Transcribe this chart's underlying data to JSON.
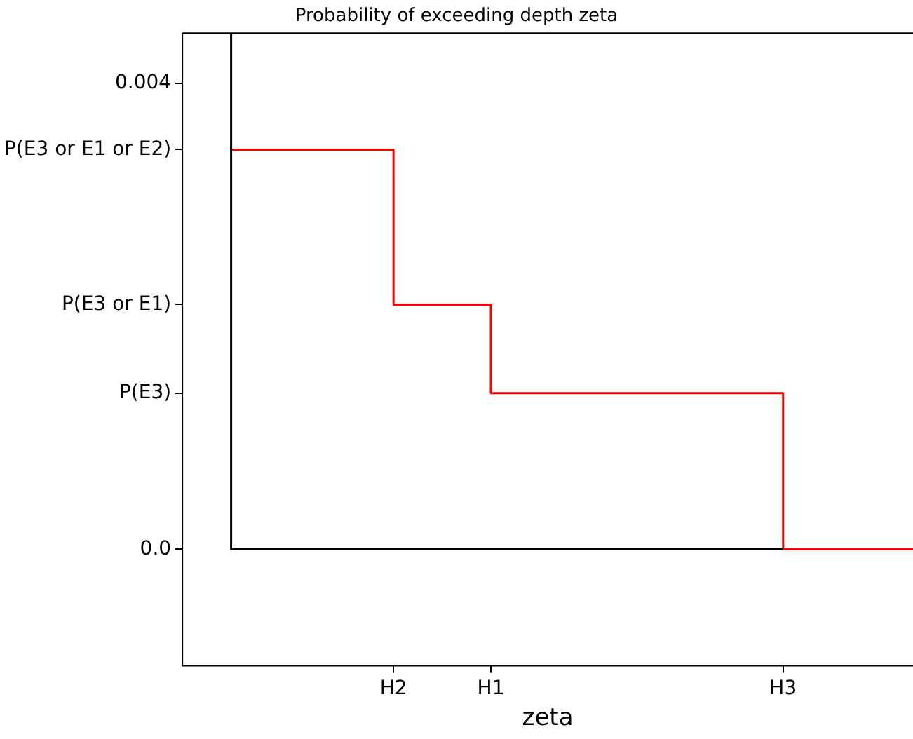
{
  "chart_data": {
    "type": "step",
    "title": "Probability of exceeding depth zeta",
    "xlabel": "zeta",
    "categories": [
      null,
      null,
      null,
      null,
      null,
      null,
      null,
      null,
      null,
      null,
      null,
      null,
      null,
      "H2",
      null,
      null,
      null,
      null,
      null,
      "H1",
      null,
      null,
      null,
      null,
      null,
      null,
      null,
      null,
      null,
      null,
      null,
      null,
      null,
      null,
      null,
      null,
      null,
      "H3",
      null,
      null,
      null,
      null,
      null,
      null,
      null,
      null
    ],
    "ylim": [
      -0.001,
      0.00443
    ],
    "yticks": [
      {
        "value": 0,
        "label": "0.0"
      },
      {
        "value": 0.00134,
        "label": "P(E3)"
      },
      {
        "value": 0.0021,
        "label": "P(E3 or E1)"
      },
      {
        "value": 0.00343,
        "label": "P(E3 or E1 or E2)"
      },
      0.004
    ],
    "grid": false,
    "legend": false,
    "marker": "none",
    "series": [
      {
        "color": "#000000",
        "values": [
          null,
          null,
          null,
          0.00443,
          null,
          null,
          null,
          null,
          null,
          null,
          null,
          null,
          null,
          null,
          null,
          null,
          null,
          null,
          null,
          null,
          null,
          null,
          null,
          null,
          null,
          null,
          null,
          null,
          null,
          null,
          null,
          null,
          null,
          null,
          null,
          null,
          null,
          0,
          null,
          null,
          null,
          null,
          null,
          null,
          null,
          null
        ]
      },
      {
        "color": "#ff0000",
        "values": [
          null,
          null,
          null,
          0.00343,
          null,
          null,
          null,
          null,
          null,
          null,
          null,
          null,
          null,
          0.00343,
          null,
          null,
          null,
          null,
          null,
          0.0021,
          null,
          null,
          null,
          null,
          null,
          null,
          null,
          null,
          null,
          null,
          null,
          null,
          null,
          null,
          null,
          null,
          null,
          0.00134,
          null,
          null,
          null,
          null,
          null,
          null,
          null,
          0
        ]
      }
    ]
  }
}
